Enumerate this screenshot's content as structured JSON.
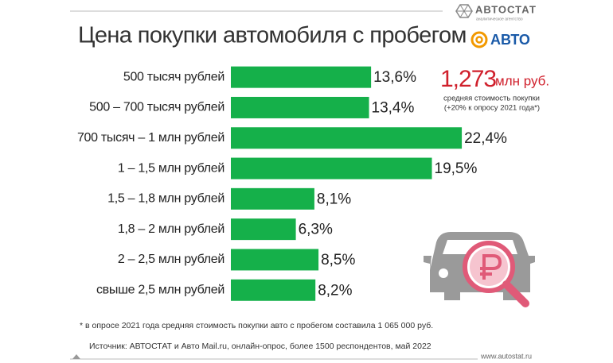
{
  "chart_data": {
    "type": "bar",
    "orientation": "horizontal",
    "title": "Цена покупки автомобиля с пробегом",
    "categories": [
      "500 тысяч рублей",
      "500 – 700 тысяч рублей",
      "700 тысяч – 1 млн рублей",
      "1 – 1,5 млн рублей",
      "1,5 – 1,8 млн рублей",
      "1,8 – 2 млн рублей",
      "2 – 2,5 млн рублей",
      "свыше 2,5 млн рублей"
    ],
    "values": [
      13.6,
      13.4,
      22.4,
      19.5,
      8.1,
      6.3,
      8.5,
      8.2
    ],
    "value_labels": [
      "13,6%",
      "13,4%",
      "22,4%",
      "19,5%",
      "8,1%",
      "6,3%",
      "8,5%",
      "8,2%"
    ],
    "color": "#15b04a",
    "annotation": {
      "amount": "1,273",
      "unit": "млн руб.",
      "caption": "средняя стоимость покупки",
      "note": "(+20% к опросу 2021 года*)"
    },
    "footnote": "* в опросе 2021 года средняя стоимость покупки авто с пробегом составила 1 065 000 руб.",
    "source": "Источник: АВТОСТАТ и Авто Mail.ru, онлайн-опрос, более 1500 респондентов, май 2022"
  },
  "logos": {
    "autostat": "АВТОСТАТ",
    "autostat_tagline": "аналитическое агентство",
    "mail_auto": "АВТО"
  },
  "website": "www.autostat.ru"
}
